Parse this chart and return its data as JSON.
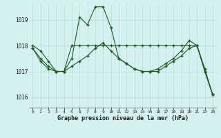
{
  "title": "Graphe pression niveau de la mer (hPa)",
  "hours": [
    0,
    1,
    2,
    3,
    4,
    5,
    6,
    7,
    8,
    9,
    10,
    11,
    12,
    13,
    14,
    15,
    16,
    17,
    18,
    19,
    20,
    21,
    22,
    23
  ],
  "ylim": [
    1015.6,
    1019.6
  ],
  "yticks": [
    1016,
    1017,
    1018,
    1019
  ],
  "background_color": "#d4f0f0",
  "grid_color": "#b8d8d8",
  "line_color": "#1a5c1a",
  "c1": [
    1018.0,
    1017.8,
    1017.4,
    1017.0,
    1017.0,
    1018.0,
    1018.0,
    1018.0,
    1018.0,
    1018.0,
    1018.0,
    1018.0,
    1018.0,
    1018.0,
    1018.0,
    1018.0,
    1018.0,
    1018.0,
    1018.0,
    1018.0,
    1018.0,
    1018.0,
    1017.0,
    1016.1
  ],
  "c2": [
    1017.9,
    1017.5,
    1017.2,
    1017.0,
    1017.0,
    1017.5,
    1019.1,
    1018.8,
    1019.5,
    1019.5,
    1018.7,
    1017.5,
    1017.3,
    1017.1,
    1017.0,
    1017.0,
    1017.1,
    1017.3,
    1017.5,
    1017.8,
    1018.2,
    1018.0,
    1017.0,
    1016.1
  ],
  "c3": [
    1017.9,
    1017.4,
    1017.1,
    1017.0,
    1017.0,
    1017.2,
    1017.4,
    1017.6,
    1017.9,
    1018.1,
    1017.8,
    1017.5,
    1017.3,
    1017.1,
    1017.0,
    1017.0,
    1017.0,
    1017.2,
    1017.4,
    1017.6,
    1017.9,
    1018.0,
    1017.1,
    1016.1
  ]
}
